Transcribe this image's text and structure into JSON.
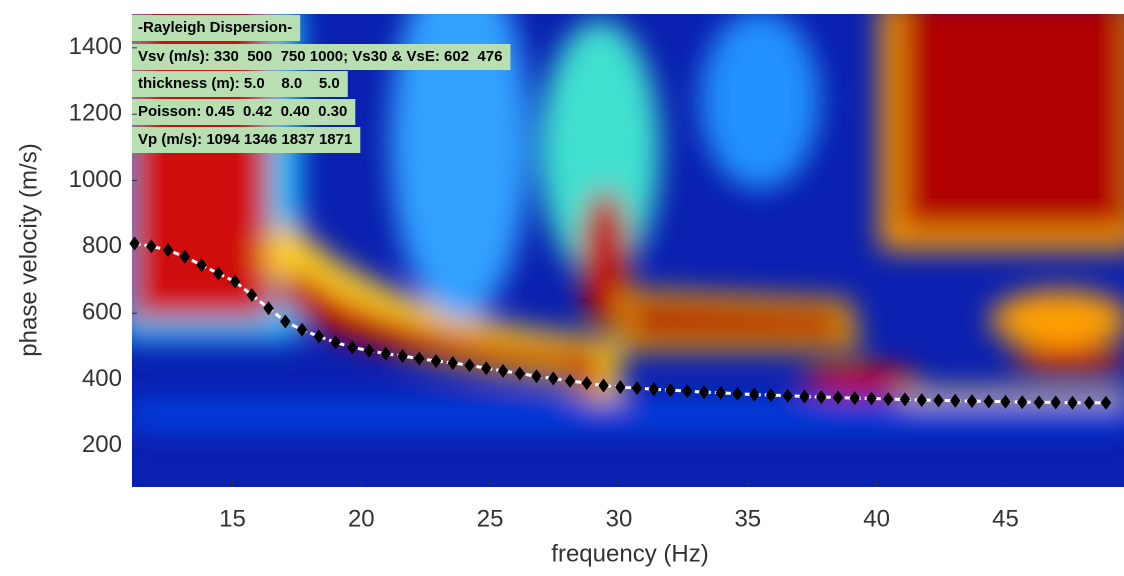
{
  "chart_data": {
    "type": "scatter",
    "xlabel": "frequency (Hz)",
    "ylabel": "phase velocity (m/s)",
    "xlim": [
      11.1,
      49.6
    ],
    "ylim": [
      76,
      1502
    ],
    "xticks": [
      15,
      20,
      25,
      30,
      35,
      40,
      45
    ],
    "yticks": [
      200,
      400,
      600,
      800,
      1000,
      1200,
      1400
    ],
    "annotations": [
      "-Rayleigh Dispersion-",
      "Vsv (m/s): 330  500  750 1000; Vs30 & VsE: 602  476",
      "thickness (m): 5.0    8.0    5.0",
      "Poisson: 0.45  0.42  0.40  0.30",
      "Vp (m/s): 1094 1346 1837 1871"
    ],
    "series": [
      {
        "color": "#000000",
        "x": [
          11.2,
          11.85,
          12.5,
          13.15,
          13.8,
          14.45,
          15.1,
          15.75,
          16.4,
          17.05,
          17.7,
          18.35,
          19.0,
          19.65,
          20.3,
          20.95,
          21.6,
          22.25,
          22.9,
          23.55,
          24.2,
          24.85,
          25.5,
          26.15,
          26.8,
          27.45,
          28.1,
          28.75,
          29.4,
          30.05,
          30.7,
          31.35,
          32.0,
          32.65,
          33.3,
          33.95,
          34.6,
          35.25,
          35.9,
          36.55,
          37.2,
          37.85,
          38.5,
          39.15,
          39.8,
          40.45,
          41.1,
          41.75,
          42.4,
          43.05,
          43.7,
          44.35,
          45.0,
          45.65,
          46.3,
          46.95,
          47.6,
          48.25,
          48.9
        ],
        "values": [
          810,
          802,
          790,
          770,
          745,
          720,
          695,
          655,
          615,
          575,
          550,
          530,
          512,
          497,
          487,
          478,
          471,
          463,
          456,
          450,
          443,
          434,
          426,
          418,
          410,
          403,
          396,
          389,
          382,
          377,
          374,
          371,
          368,
          365,
          362,
          360,
          357,
          355,
          353,
          351,
          349,
          347,
          346,
          344,
          343,
          341,
          340,
          338,
          337,
          336,
          335,
          334,
          333,
          332,
          331,
          331,
          330,
          330,
          330
        ]
      }
    ]
  }
}
